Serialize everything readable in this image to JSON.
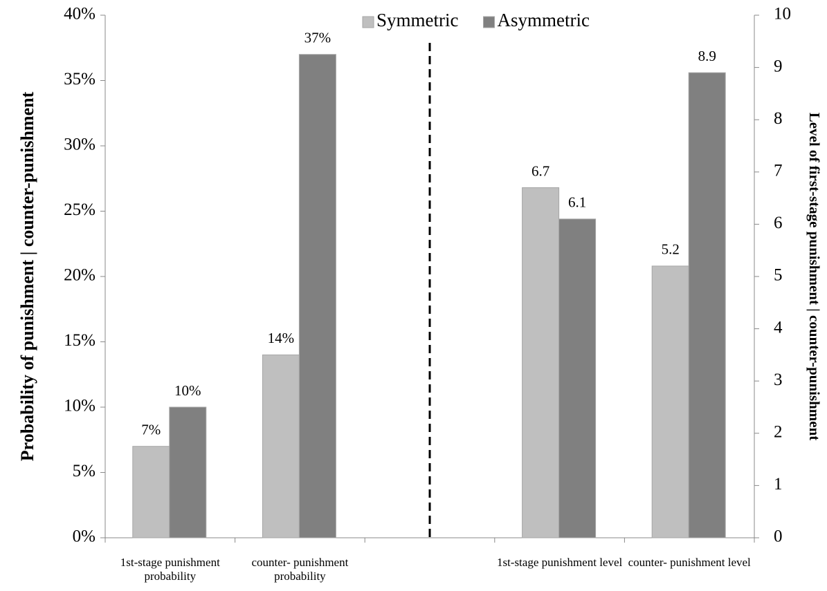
{
  "chart_data": {
    "type": "bar",
    "y_label": "Probability of punishment | counter-punishment",
    "y2_label": "Level of first-stage punishment | counter-punishment",
    "categories": [
      "1st-stage punishment probability",
      "counter- punishment probability",
      null,
      "1st-stage punishment level",
      "counter- punishment level"
    ],
    "series": [
      {
        "name": "Symmetric",
        "color": "#bfbfbf",
        "values": [
          7,
          14,
          null,
          null,
          null
        ],
        "value_labels": [
          "7%",
          "14%",
          null,
          null,
          null
        ]
      },
      {
        "name": "Asymmetric",
        "color": "#808080",
        "values": [
          10,
          37,
          null,
          null,
          null
        ],
        "value_labels": [
          "10%",
          "37%",
          null,
          null,
          null
        ]
      },
      {
        "name": "Symmetric",
        "color": "#bfbfbf",
        "axis": "y2",
        "values": [
          null,
          null,
          null,
          6.7,
          5.2
        ]
      },
      {
        "name": "Asymmetric",
        "color": "#808080",
        "axis": "y2",
        "values": [
          null,
          null,
          null,
          6.1,
          8.9
        ]
      }
    ],
    "ylim": [
      0,
      40
    ],
    "yticks": [
      {
        "value": 0,
        "label": "0%"
      },
      {
        "value": 5,
        "label": "5%"
      },
      {
        "value": 10,
        "label": "10%"
      },
      {
        "value": 15,
        "label": "15%"
      },
      {
        "value": 20,
        "label": "20%"
      },
      {
        "value": 25,
        "label": "25%"
      },
      {
        "value": 30,
        "label": "30%"
      },
      {
        "value": 35,
        "label": "35%"
      },
      {
        "value": 40,
        "label": "40%"
      }
    ],
    "y2lim": [
      0,
      10
    ],
    "y2ticks": [
      0,
      1,
      2,
      3,
      4,
      5,
      6,
      7,
      8,
      9,
      10
    ],
    "legend": "top",
    "grid": false
  }
}
